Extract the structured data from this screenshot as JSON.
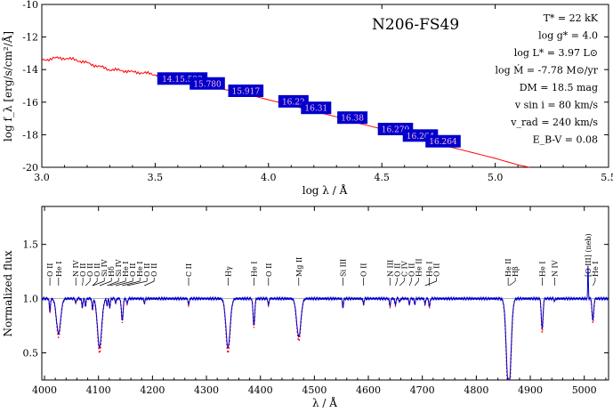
{
  "chart_data": [
    {
      "type": "line",
      "title": "N206-FS49",
      "xlabel": "log λ / Å",
      "ylabel": "log f_λ [erg/s/cm²/Å]",
      "xlim": [
        3.0,
        5.5
      ],
      "ylim": [
        -20,
        -10
      ],
      "xticks": [
        "3.0",
        "3.5",
        "4.0",
        "4.5",
        "5.0",
        "5.5"
      ],
      "yticks": [
        "-10",
        "-12",
        "-14",
        "-16",
        "-18",
        "-20"
      ],
      "series": [
        {
          "color": "#ff0000",
          "x": [
            3.0,
            3.05,
            3.1,
            3.15,
            3.2,
            3.25,
            3.3,
            3.35,
            3.4,
            3.45,
            3.5,
            3.55,
            3.6,
            3.7,
            3.8,
            3.9,
            4.0,
            4.1,
            4.2,
            4.3,
            4.4,
            4.5,
            4.6,
            4.7,
            4.8,
            4.9,
            5.0,
            5.05,
            5.1,
            5.15
          ],
          "y": [
            -13.45,
            -13.3,
            -13.3,
            -13.4,
            -13.6,
            -13.8,
            -14.0,
            -14.05,
            -14.15,
            -14.2,
            -14.3,
            -14.45,
            -14.6,
            -14.9,
            -15.2,
            -15.5,
            -15.85,
            -16.2,
            -16.55,
            -16.9,
            -17.3,
            -17.65,
            -18.05,
            -18.4,
            -18.75,
            -19.1,
            -19.45,
            -19.65,
            -19.85,
            -20.0
          ]
        }
      ],
      "photometry": [
        {
          "label": "14.15.593",
          "x": 3.62,
          "y": -14.55
        },
        {
          "label": "15.780",
          "x": 3.73,
          "y": -14.85
        },
        {
          "label": "15.917",
          "x": 3.9,
          "y": -15.3
        },
        {
          "label": "16.22",
          "x": 4.11,
          "y": -15.95
        },
        {
          "label": "16.31",
          "x": 4.21,
          "y": -16.35
        },
        {
          "label": "16.38",
          "x": 4.37,
          "y": -16.95
        },
        {
          "label": "16.279",
          "x": 4.56,
          "y": -17.65
        },
        {
          "label": "16.264",
          "x": 4.67,
          "y": -18.05
        },
        {
          "label": "16.264",
          "x": 4.77,
          "y": -18.4
        }
      ],
      "parameters": [
        "T* = 22 kK",
        "log g* = 4.0",
        "log L* = 3.97 L⊙",
        "log Ṁ = -7.78 M⊙/yr",
        "DM = 18.5 mag",
        "v sin i = 80 km/s",
        "v_rad = 240 km/s",
        "E_B-V = 0.08"
      ]
    },
    {
      "type": "line",
      "xlabel": "λ / Å",
      "ylabel": "Normalized flux",
      "xlim": [
        3995,
        5045
      ],
      "ylim": [
        0.25,
        1.85
      ],
      "xticks": [
        "4000",
        "4100",
        "4200",
        "4300",
        "4400",
        "4500",
        "4600",
        "4700",
        "4800",
        "4900",
        "5000"
      ],
      "yticks": [
        "0.5",
        "1.0",
        "1.5"
      ],
      "continuum": 1.0,
      "series": [
        {
          "style": "observed",
          "color": "#0000cc"
        },
        {
          "style": "model",
          "color": "#ff0000",
          "dashed": true
        }
      ],
      "lines": [
        {
          "label": "O II",
          "x": 4010,
          "depth": 0.12
        },
        {
          "label": "He I",
          "x": 4026,
          "depth": 0.32
        },
        {
          "label": "N IV",
          "x": 4058,
          "depth": 0.04
        },
        {
          "label": "O II",
          "x": 4070,
          "depth": 0.08
        },
        {
          "label": "O II",
          "x": 4076,
          "depth": 0.07
        },
        {
          "label": "O II",
          "x": 4089,
          "depth": 0.05
        },
        {
          "label": "Si IV",
          "x": 4089,
          "depth": 0.05
        },
        {
          "label": "Hδ",
          "x": 4102,
          "depth": 0.45
        },
        {
          "label": "Si IV",
          "x": 4116,
          "depth": 0.06
        },
        {
          "label": "He I",
          "x": 4121,
          "depth": 0.08
        },
        {
          "label": "O II",
          "x": 4132,
          "depth": 0.04
        },
        {
          "label": "He I",
          "x": 4144,
          "depth": 0.2
        },
        {
          "label": "O II",
          "x": 4153,
          "depth": 0.05
        },
        {
          "label": "O II",
          "x": 4185,
          "depth": 0.04
        },
        {
          "label": "C II",
          "x": 4267,
          "depth": 0.06
        },
        {
          "label": "Hγ",
          "x": 4340,
          "depth": 0.45
        },
        {
          "label": "He I",
          "x": 4388,
          "depth": 0.24
        },
        {
          "label": "O II",
          "x": 4415,
          "depth": 0.06
        },
        {
          "label": "Mg II",
          "x": 4471,
          "depth": 0.35
        },
        {
          "label": "Si III",
          "x": 4553,
          "depth": 0.08
        },
        {
          "label": "O II",
          "x": 4591,
          "depth": 0.05
        },
        {
          "label": "N III",
          "x": 4640,
          "depth": 0.07
        },
        {
          "label": "O II",
          "x": 4650,
          "depth": 0.06
        },
        {
          "label": "C IV",
          "x": 4658,
          "depth": 0.03
        },
        {
          "label": "O II",
          "x": 4676,
          "depth": 0.05
        },
        {
          "label": "He II",
          "x": 4686,
          "depth": 0.05
        },
        {
          "label": "He I",
          "x": 4713,
          "depth": 0.08
        },
        {
          "label": "O II",
          "x": 4705,
          "depth": 0.05
        },
        {
          "label": "He II",
          "x": 4859,
          "depth": 0.45
        },
        {
          "label": "Hβ",
          "x": 4861,
          "depth": 0.45
        },
        {
          "label": "He I",
          "x": 4922,
          "depth": 0.28
        },
        {
          "label": "N IV",
          "x": 4945,
          "depth": 0.02
        },
        {
          "label": "[O III] (neb)",
          "x": 5007,
          "depth": -0.3
        },
        {
          "label": "He I",
          "x": 5016,
          "depth": 0.2
        }
      ]
    }
  ]
}
